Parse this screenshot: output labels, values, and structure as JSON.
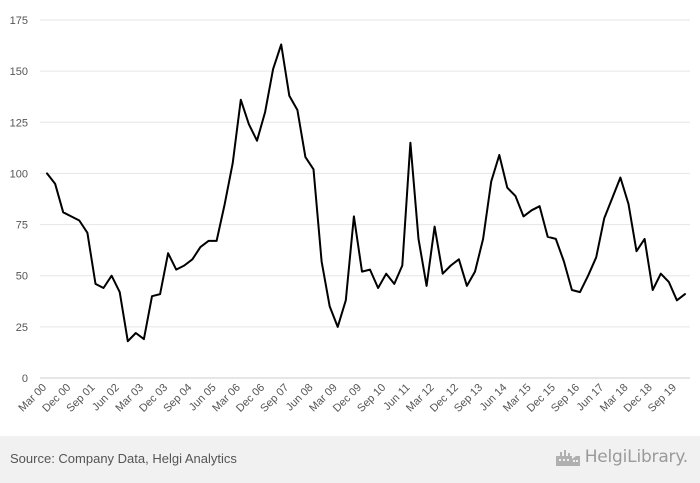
{
  "chart_data": {
    "type": "line",
    "title": "",
    "xlabel": "",
    "ylabel": "",
    "ylim": [
      0,
      175
    ],
    "yticks": [
      0,
      25,
      50,
      75,
      100,
      125,
      150,
      175
    ],
    "grid": true,
    "legend": "none",
    "line_color": "#000000",
    "xtick_labels": [
      "Mar 00",
      "Dec 00",
      "Sep 01",
      "Jun 02",
      "Mar 03",
      "Dec 03",
      "Sep 04",
      "Jun 05",
      "Mar 06",
      "Dec 06",
      "Sep 07",
      "Jun 08",
      "Mar 09",
      "Dec 09",
      "Sep 10",
      "Jun 11",
      "Mar 12",
      "Dec 12",
      "Sep 13",
      "Jun 14",
      "Mar 15",
      "Dec 15",
      "Sep 16",
      "Jun 17",
      "Mar 18",
      "Dec 18",
      "Sep 19"
    ],
    "series": [
      {
        "values": [
          100,
          95,
          81,
          79,
          77,
          71,
          46,
          44,
          50,
          42,
          18,
          22,
          19,
          40,
          41,
          61,
          53,
          55,
          58,
          64,
          67,
          67,
          85,
          105,
          136,
          124,
          116,
          130,
          151,
          163,
          138,
          131,
          108,
          102,
          57,
          35,
          25,
          38,
          79,
          52,
          53,
          44,
          51,
          46,
          55,
          115,
          68,
          45,
          74,
          51,
          55,
          58,
          45,
          52,
          68,
          96,
          109,
          93,
          89,
          79,
          82,
          84,
          69,
          68,
          57,
          43,
          42,
          50,
          59,
          78,
          88,
          98,
          85,
          62,
          68,
          43,
          51,
          47,
          38,
          41
        ]
      }
    ]
  },
  "footer": {
    "source": "Source: Company Data, Helgi Analytics",
    "brand": "HelgiLibrary."
  },
  "colors": {
    "grid": "#e6e6e6",
    "axis_text": "#555555",
    "footer_bg": "#f1f1f1",
    "brand": "#9a9a9a"
  }
}
